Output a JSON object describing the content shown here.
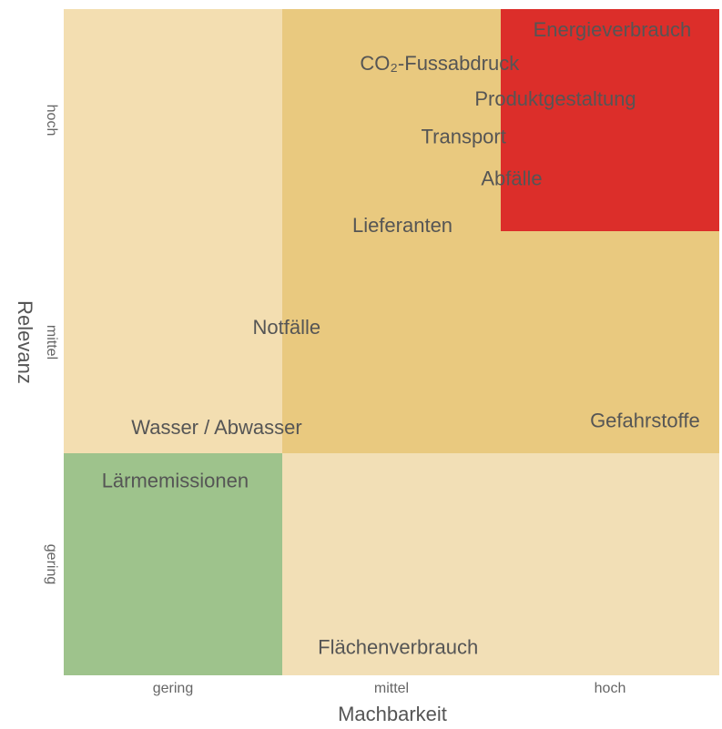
{
  "chart_data": {
    "type": "matrix",
    "xlabel": "Machbarkeit",
    "ylabel": "Relevanz",
    "xlim": [
      0,
      3
    ],
    "ylim": [
      0,
      3
    ],
    "xticks": [
      {
        "value": 0.5,
        "label": "gering"
      },
      {
        "value": 1.5,
        "label": "mittel"
      },
      {
        "value": 2.5,
        "label": "hoch"
      }
    ],
    "yticks": [
      {
        "value": 0.5,
        "label": "gering"
      },
      {
        "value": 1.5,
        "label": "mittel"
      },
      {
        "value": 2.5,
        "label": "hoch"
      }
    ],
    "regions": [
      {
        "bounds": [
          0,
          1,
          1,
          3
        ],
        "color": "#f3deb1"
      },
      {
        "bounds": [
          1,
          3,
          1,
          3
        ],
        "color": "#e9c97f"
      },
      {
        "bounds": [
          2,
          3,
          2,
          3
        ],
        "color": "#dc2e2a"
      },
      {
        "bounds": [
          0,
          1,
          0,
          1
        ],
        "color": "#9ec38c"
      },
      {
        "bounds": [
          1,
          3,
          0,
          1
        ],
        "color": "#f2dfb6"
      }
    ],
    "points": [
      {
        "label": "Energieverbrauch",
        "x": 2.51,
        "y": 2.9
      },
      {
        "label": "CO₂-Fussabdruck",
        "x": 1.72,
        "y": 2.75
      },
      {
        "label": "Produktgestaltung",
        "x": 2.25,
        "y": 2.59
      },
      {
        "label": "Transport",
        "x": 1.83,
        "y": 2.42
      },
      {
        "label": "Abfälle",
        "x": 2.05,
        "y": 2.23
      },
      {
        "label": "Lieferanten",
        "x": 1.55,
        "y": 2.02
      },
      {
        "label": "Notfälle",
        "x": 1.02,
        "y": 1.56
      },
      {
        "label": "Wasser / Abwasser",
        "x": 0.7,
        "y": 1.11
      },
      {
        "label": "Gefahrstoffe",
        "x": 2.66,
        "y": 1.14
      },
      {
        "label": "Lärmemissionen",
        "x": 0.51,
        "y": 0.87
      },
      {
        "label": "Flächenverbrauch",
        "x": 1.53,
        "y": 0.12
      }
    ]
  }
}
